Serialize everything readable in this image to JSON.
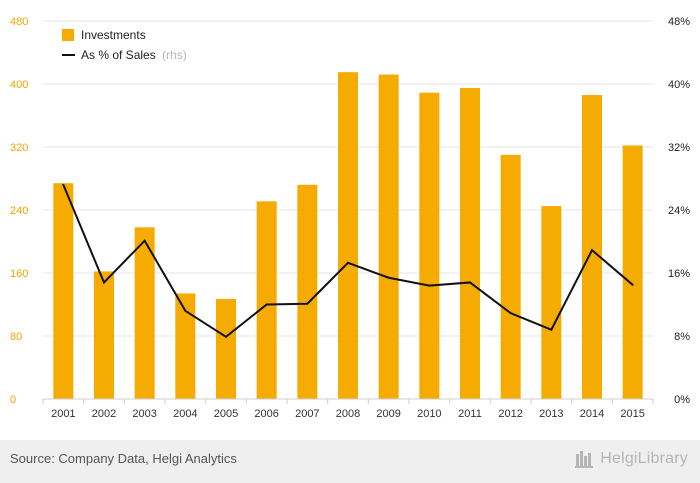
{
  "chart_data": {
    "type": "bar+line",
    "categories": [
      "2001",
      "2002",
      "2003",
      "2004",
      "2005",
      "2006",
      "2007",
      "2008",
      "2009",
      "2010",
      "2011",
      "2012",
      "2013",
      "2014",
      "2015"
    ],
    "series": [
      {
        "name": "Investments",
        "type": "bar",
        "axis": "left",
        "values": [
          274,
          162,
          218,
          134,
          127,
          251,
          272,
          415,
          412,
          389,
          395,
          310,
          245,
          386,
          322
        ]
      },
      {
        "name": "As % of Sales",
        "name_suffix": "(rhs)",
        "type": "line",
        "axis": "right",
        "values": [
          27.2,
          14.8,
          20.1,
          11.2,
          7.9,
          12.0,
          12.1,
          17.3,
          15.4,
          14.4,
          14.8,
          10.9,
          8.8,
          18.9,
          14.5
        ]
      }
    ],
    "y_left": {
      "ylim": [
        0,
        480
      ],
      "ticks": [
        "0",
        "80",
        "160",
        "240",
        "320",
        "400",
        "480"
      ]
    },
    "y_right": {
      "ylim": [
        0,
        48
      ],
      "ticks": [
        "0%",
        "8%",
        "16%",
        "24%",
        "32%",
        "40%",
        "48%"
      ]
    },
    "grid": true,
    "legend_position": "top-left",
    "colors": {
      "bar": "#f5ab00",
      "line": "#111111",
      "left_axis": "#f0a500"
    }
  },
  "footer": {
    "source": "Source: Company Data, Helgi Analytics",
    "brand": "HelgiLibrary"
  }
}
